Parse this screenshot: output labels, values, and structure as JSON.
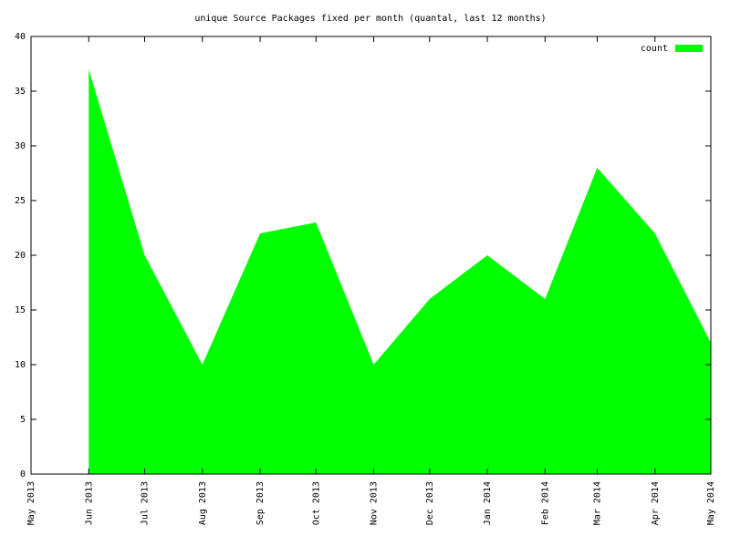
{
  "chart_data": {
    "type": "area",
    "title": "unique Source Packages fixed per month (quantal, last 12 months)",
    "x": [
      "2013-06",
      "2013-07",
      "2013-08",
      "2013-09",
      "2013-10",
      "2013-11",
      "2013-12",
      "2014-01",
      "2014-02",
      "2014-03",
      "2014-04",
      "2014-05"
    ],
    "series": [
      {
        "name": "count",
        "color": "#00ff00",
        "values": [
          37,
          20,
          10,
          22,
          23,
          10,
          16,
          20,
          16,
          28,
          22,
          12
        ]
      }
    ],
    "xlim": [
      "2013-05",
      "2014-05"
    ],
    "xticks": [
      {
        "value": "2013-05",
        "label": "May 2013"
      },
      {
        "value": "2013-06",
        "label": "Jun 2013"
      },
      {
        "value": "2013-07",
        "label": "Jul 2013"
      },
      {
        "value": "2013-08",
        "label": "Aug 2013"
      },
      {
        "value": "2013-09",
        "label": "Sep 2013"
      },
      {
        "value": "2013-10",
        "label": "Oct 2013"
      },
      {
        "value": "2013-11",
        "label": "Nov 2013"
      },
      {
        "value": "2013-12",
        "label": "Dec 2013"
      },
      {
        "value": "2014-01",
        "label": "Jan 2014"
      },
      {
        "value": "2014-02",
        "label": "Feb 2014"
      },
      {
        "value": "2014-03",
        "label": "Mar 2014"
      },
      {
        "value": "2014-04",
        "label": "Apr 2014"
      },
      {
        "value": "2014-05",
        "label": "May 2014"
      }
    ],
    "ylim": [
      0,
      40
    ],
    "yticks": [
      0,
      5,
      10,
      15,
      20,
      25,
      30,
      35,
      40
    ],
    "grid": false,
    "legend": "top-right"
  }
}
